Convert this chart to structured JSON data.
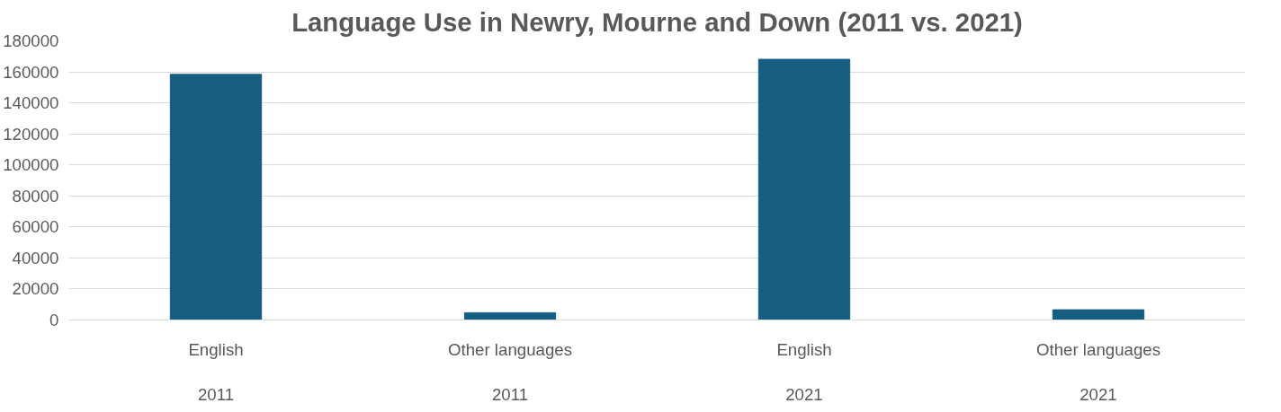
{
  "chart_data": {
    "type": "bar",
    "title": "Language Use in Newry, Mourne and Down (2011 vs. 2021)",
    "categories": [
      "English\n\n2011",
      "Other languages\n\n2011",
      "English\n\n2021",
      "Other languages\n\n2021"
    ],
    "values": [
      158400,
      4700,
      168100,
      6600
    ],
    "color": "#165e81",
    "ylim": [
      0,
      180000
    ],
    "yticks": [
      0,
      20000,
      40000,
      60000,
      80000,
      100000,
      120000,
      140000,
      160000,
      180000
    ],
    "grid": "y"
  }
}
